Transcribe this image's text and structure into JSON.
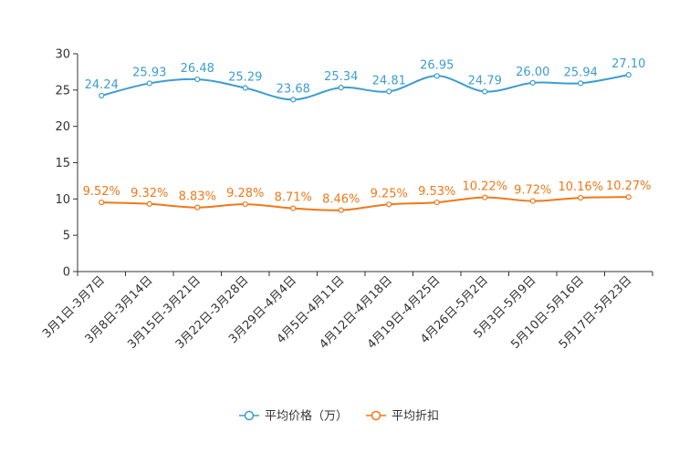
{
  "chart_data": {
    "type": "line",
    "title": "",
    "xlabel": "",
    "ylabel": "",
    "ylim": [
      0,
      30
    ],
    "yticks": [
      0,
      5,
      10,
      15,
      20,
      25,
      30
    ],
    "categories": [
      "3月1日-3月7日",
      "3月8日-3月14日",
      "3月15日-3月21日",
      "3月22日-3月28日",
      "3月29日-4月4日",
      "4月5日-4月11日",
      "4月12日-4月18日",
      "4月19日-4月25日",
      "4月26日-5月2日",
      "5月3日-5月9日",
      "5月10日-5月16日",
      "5月17日-5月23日"
    ],
    "series": [
      {
        "name": "平均价格（万）",
        "color": "#3d9dd1",
        "values": [
          24.24,
          25.93,
          26.48,
          25.29,
          23.68,
          25.34,
          24.81,
          26.95,
          24.79,
          26.0,
          25.94,
          27.1
        ],
        "labels": [
          "24.24",
          "25.93",
          "26.48",
          "25.29",
          "23.68",
          "25.34",
          "24.81",
          "26.95",
          "24.79",
          "26.00",
          "25.94",
          "27.10"
        ]
      },
      {
        "name": "平均折扣",
        "color": "#f07818",
        "values": [
          9.52,
          9.32,
          8.83,
          9.28,
          8.71,
          8.46,
          9.25,
          9.53,
          10.22,
          9.72,
          10.16,
          10.27
        ],
        "labels": [
          "9.52%",
          "9.32%",
          "8.83%",
          "9.28%",
          "8.71%",
          "8.46%",
          "9.25%",
          "9.53%",
          "10.22%",
          "9.72%",
          "10.16%",
          "10.27%"
        ]
      }
    ],
    "grid": false,
    "legend_position": "bottom-center"
  }
}
